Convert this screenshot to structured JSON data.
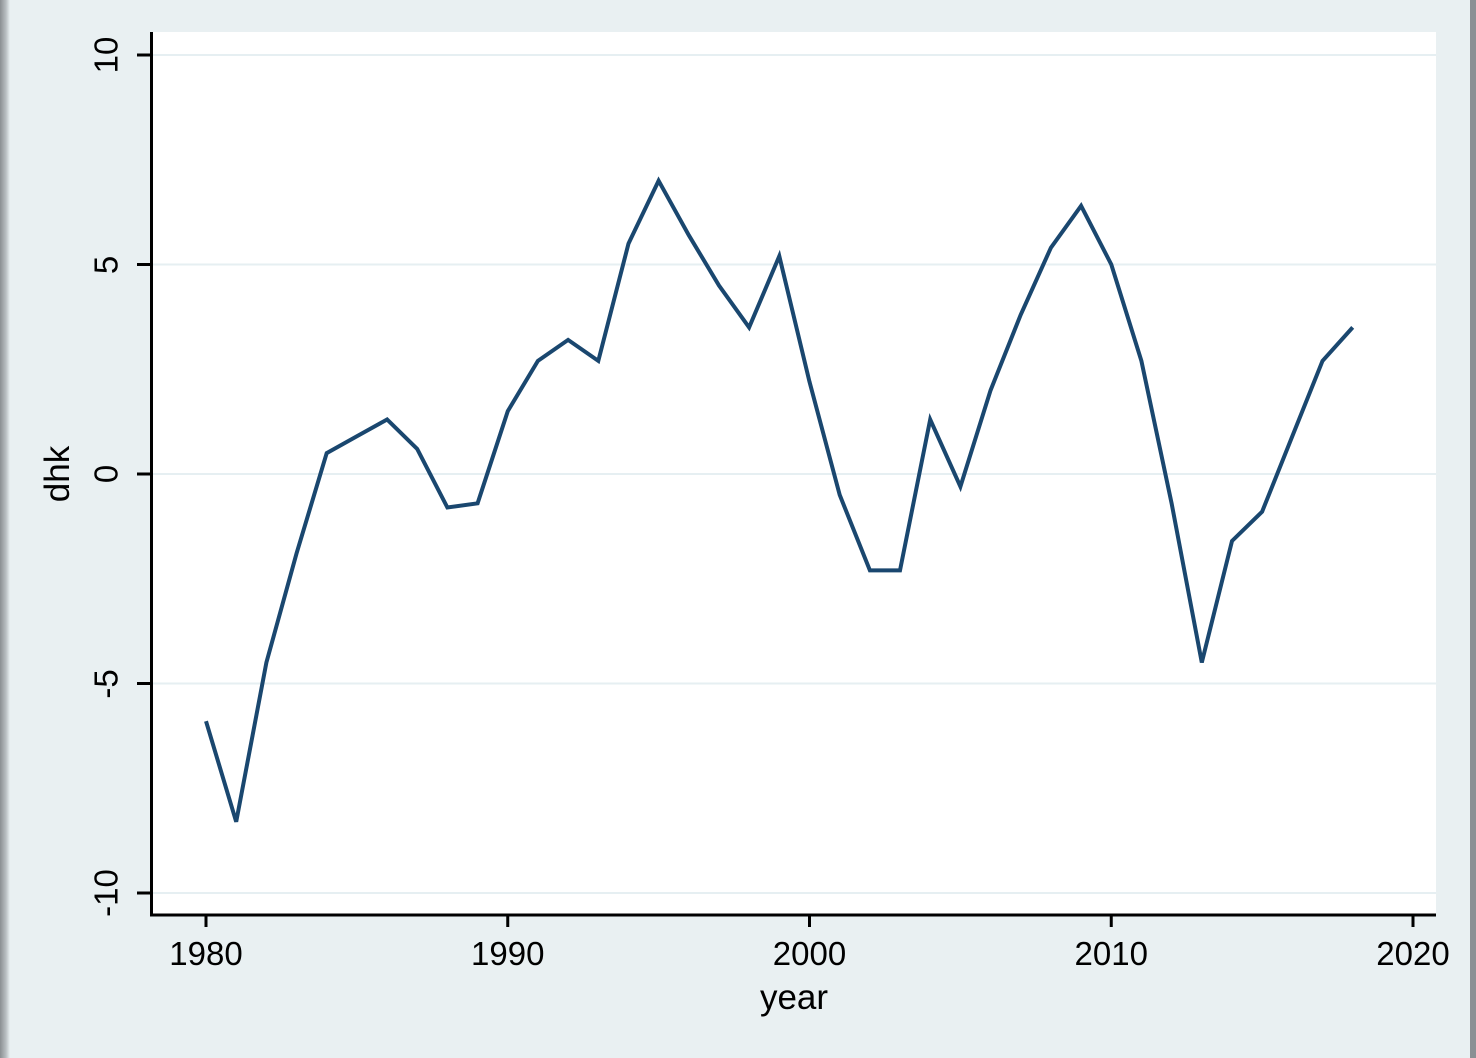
{
  "axes": {
    "x_label": "year",
    "y_label": "dhk"
  },
  "colors": {
    "line": "#1a476f",
    "background": "#e9f0f2",
    "plot_background": "#ffffff",
    "gridline": "#e6eff2",
    "axis": "#000000"
  },
  "chart_data": {
    "type": "line",
    "title": "",
    "xlabel": "year",
    "ylabel": "dhk",
    "x_tick_labels": [
      "1980",
      "1990",
      "2000",
      "2010",
      "2020"
    ],
    "x_tick_values": [
      1980,
      1990,
      2000,
      2010,
      2020
    ],
    "y_tick_labels": [
      "10",
      "5",
      "0",
      "-5",
      "-10"
    ],
    "y_tick_values": [
      10,
      5,
      0,
      -5,
      -10
    ],
    "xlim": [
      1978.2,
      2020.8
    ],
    "ylim": [
      -10.5,
      10.5
    ],
    "grid": "horizontal-only",
    "legend": "none",
    "series": [
      {
        "name": "dhk",
        "x": [
          1980,
          1981,
          1982,
          1983,
          1984,
          1985,
          1986,
          1987,
          1988,
          1989,
          1990,
          1991,
          1992,
          1993,
          1994,
          1995,
          1996,
          1997,
          1998,
          1999,
          2000,
          2001,
          2002,
          2003,
          2004,
          2005,
          2006,
          2007,
          2008,
          2009,
          2010,
          2011,
          2012,
          2013,
          2014,
          2015,
          2016,
          2017,
          2018
        ],
        "values": [
          -5.9,
          -8.3,
          -4.5,
          -1.9,
          0.5,
          0.9,
          1.3,
          0.6,
          -0.8,
          -0.7,
          1.5,
          2.7,
          3.2,
          2.7,
          5.5,
          7.0,
          5.7,
          4.5,
          3.5,
          5.2,
          2.2,
          -0.5,
          -2.3,
          -2.3,
          1.3,
          -0.3,
          2.0,
          3.8,
          5.4,
          6.4,
          5.0,
          2.7,
          -0.7,
          -4.5,
          -1.6,
          -0.9,
          0.9,
          2.7,
          3.5
        ]
      }
    ]
  }
}
